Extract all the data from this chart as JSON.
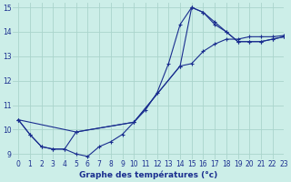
{
  "xlabel": "Graphe des températures (°c)",
  "bg_color": "#cceee8",
  "grid_color": "#aad4cc",
  "line_color": "#1a2e8f",
  "xlim": [
    -0.5,
    23
  ],
  "ylim": [
    8.8,
    15.2
  ],
  "xticks": [
    0,
    1,
    2,
    3,
    4,
    5,
    6,
    7,
    8,
    9,
    10,
    11,
    12,
    13,
    14,
    15,
    16,
    17,
    18,
    19,
    20,
    21,
    22,
    23
  ],
  "yticks": [
    9,
    10,
    11,
    12,
    13,
    14,
    15
  ],
  "curve1_x": [
    0,
    1,
    2,
    3,
    4,
    5,
    6,
    7,
    8,
    9,
    10,
    11,
    12,
    13,
    14,
    15,
    16,
    17,
    18,
    19,
    20,
    21,
    22,
    23
  ],
  "curve1_y": [
    10.4,
    9.8,
    9.3,
    9.2,
    9.2,
    9.0,
    8.9,
    9.3,
    9.5,
    9.8,
    10.3,
    10.8,
    11.5,
    12.7,
    14.3,
    15.0,
    14.8,
    14.3,
    14.0,
    13.6,
    13.6,
    13.6,
    13.7,
    13.8
  ],
  "curve2_x": [
    0,
    1,
    2,
    3,
    4,
    5,
    10,
    14,
    15,
    16,
    17,
    18,
    19,
    20,
    21,
    22,
    23
  ],
  "curve2_y": [
    10.4,
    9.8,
    9.3,
    9.2,
    9.2,
    9.9,
    10.3,
    12.6,
    12.7,
    13.2,
    13.5,
    13.7,
    13.7,
    13.8,
    13.8,
    13.8,
    13.85
  ],
  "curve3_x": [
    0,
    5,
    10,
    14,
    15,
    16,
    17,
    18,
    19,
    20,
    21,
    22,
    23
  ],
  "curve3_y": [
    10.4,
    9.9,
    10.3,
    12.6,
    15.0,
    14.8,
    14.4,
    14.0,
    13.6,
    13.6,
    13.6,
    13.7,
    13.8
  ]
}
